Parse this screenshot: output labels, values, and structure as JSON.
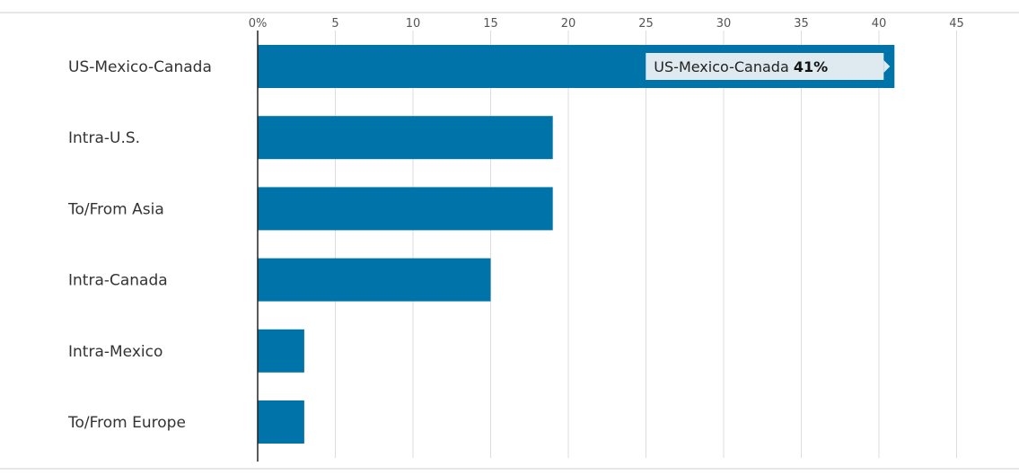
{
  "chart_data": {
    "type": "bar",
    "orientation": "horizontal",
    "title": "",
    "xlabel": "",
    "ylabel": "",
    "tick_suffix_first": "%",
    "xlim": [
      0,
      45
    ],
    "xticks": [
      0,
      5,
      10,
      15,
      20,
      25,
      30,
      35,
      40,
      45
    ],
    "tick_labels": [
      "0%",
      "5",
      "10",
      "15",
      "20",
      "25",
      "30",
      "35",
      "40",
      "45"
    ],
    "categories": [
      "US-Mexico-Canada",
      "Intra-U.S.",
      "To/From Asia",
      "Intra-Canada",
      "Intra-Mexico",
      "To/From Europe"
    ],
    "values": [
      41,
      19,
      19,
      15,
      3,
      3
    ],
    "grid": true,
    "bar_color": "#0074a8",
    "tooltip": {
      "category": "US-Mexico-Canada",
      "label": "US-Mexico-Canada",
      "value_label": "41%"
    }
  }
}
